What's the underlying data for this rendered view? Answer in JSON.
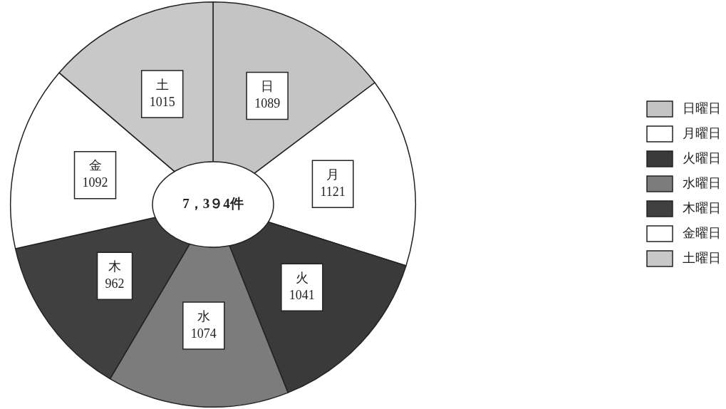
{
  "chart_data": {
    "type": "donut",
    "categories": [
      "日曜日",
      "月曜日",
      "火曜日",
      "水曜日",
      "木曜日",
      "金曜日",
      "土曜日"
    ],
    "values": [
      1089,
      1121,
      1041,
      1074,
      962,
      1092,
      1015
    ],
    "colors": [
      "#c4c4c4",
      "#ffffff",
      "#3a3a3a",
      "#7c7c7c",
      "#404040",
      "#ffffff",
      "#c8c8c8"
    ],
    "value_labels": [
      "日\n1089",
      "月\n1121",
      "火\n1041",
      "水\n1074",
      "木\n962",
      "金\n1092",
      "土\n1015"
    ],
    "annotations": [
      "7，3９4件"
    ],
    "legend": "right"
  }
}
